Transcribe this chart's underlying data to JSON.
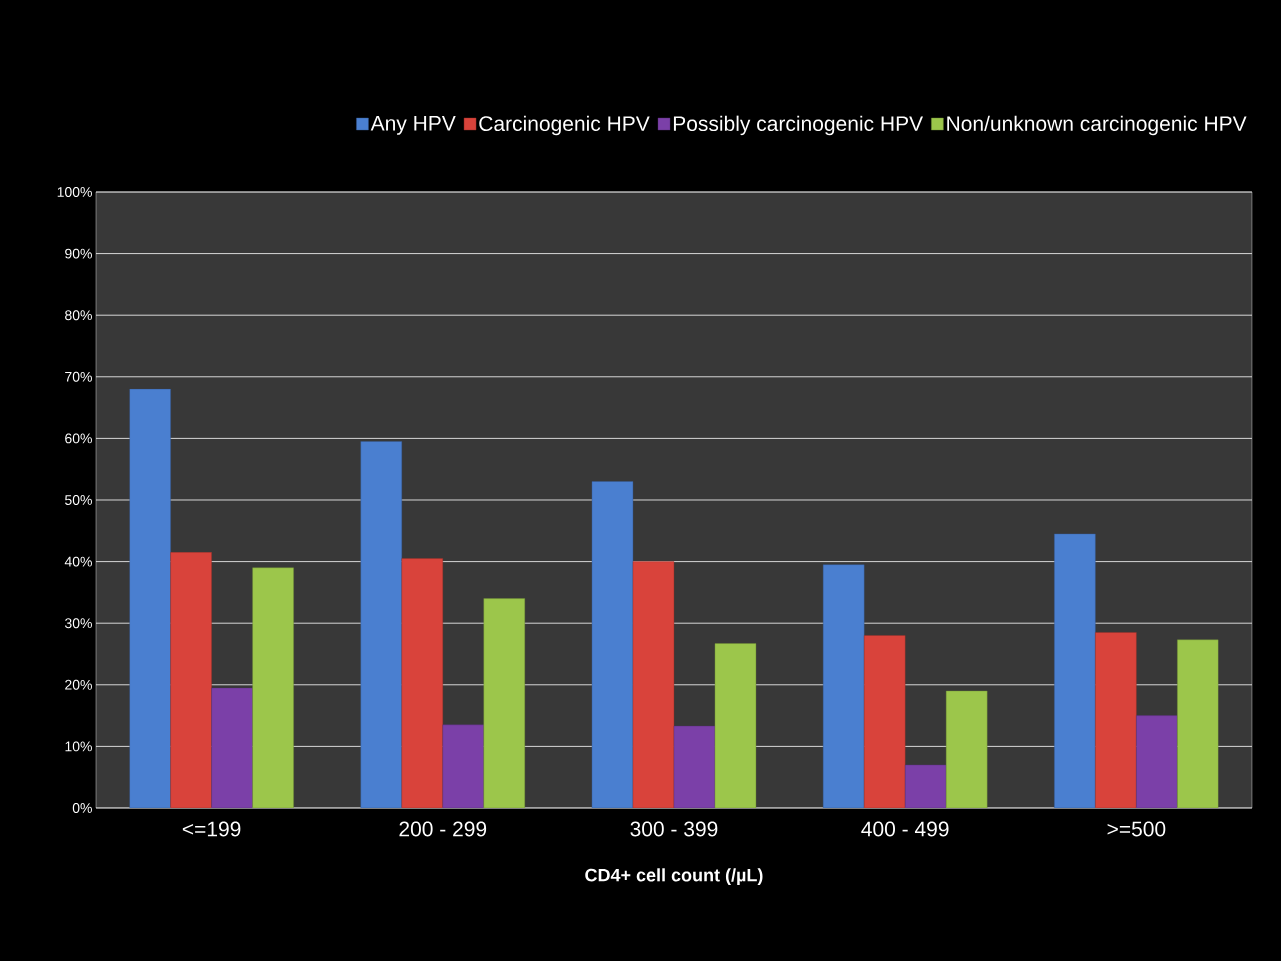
{
  "chart_data": {
    "type": "bar",
    "xlabel": "CD4+ cell count (/µL)",
    "categories": [
      "<=199",
      "200 - 299",
      "300 - 399",
      "400 - 499",
      ">=500"
    ],
    "series": [
      {
        "name": "Any HPV",
        "color": "#4a7fd0",
        "values": [
          68,
          59.5,
          53,
          39.5,
          44.5
        ]
      },
      {
        "name": "Carcinogenic HPV",
        "color": "#d9433b",
        "values": [
          41.5,
          40.5,
          40,
          28,
          28.5
        ]
      },
      {
        "name": "Possibly carcinogenic HPV",
        "color": "#7b40a8",
        "values": [
          19.5,
          13.5,
          13.3,
          7,
          15
        ]
      },
      {
        "name": "Non/unknown carcinogenic HPV",
        "color": "#9cc64b",
        "values": [
          39,
          34,
          26.7,
          19,
          27.3
        ]
      }
    ],
    "ylim": [
      0,
      100
    ],
    "yticks": [
      {
        "value": 0,
        "label": "0%"
      },
      {
        "value": 10,
        "label": "10%"
      },
      {
        "value": 20,
        "label": "20%"
      },
      {
        "value": 30,
        "label": "30%"
      },
      {
        "value": 40,
        "label": "40%"
      },
      {
        "value": 50,
        "label": "50%"
      },
      {
        "value": 60,
        "label": "60%"
      },
      {
        "value": 70,
        "label": "70%"
      },
      {
        "value": 80,
        "label": "80%"
      },
      {
        "value": 90,
        "label": "90%"
      },
      {
        "value": 100,
        "label": "100%"
      }
    ],
    "grid": "y",
    "legend": "top"
  }
}
